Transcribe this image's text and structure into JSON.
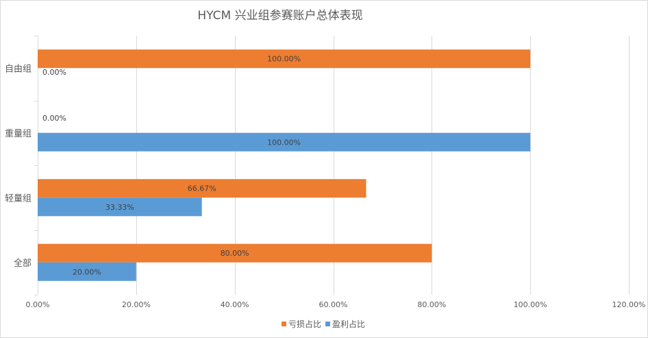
{
  "chart_data": {
    "type": "bar",
    "orientation": "horizontal",
    "title": "HYCM 兴业组参赛账户总体表现",
    "categories": [
      "自由组",
      "重量组",
      "轻量组",
      "全部"
    ],
    "series": [
      {
        "name": "亏损占比",
        "color": "#ED7D31",
        "values": [
          100,
          0,
          66.67,
          80
        ],
        "labels": [
          "100.00%",
          "0.00%",
          "66.67%",
          "80.00%"
        ]
      },
      {
        "name": "盈利占比",
        "color": "#5B9BD5",
        "values": [
          0,
          100,
          33.33,
          20
        ],
        "labels": [
          "0.00%",
          "100.00%",
          "33.33%",
          "20.00%"
        ]
      }
    ],
    "xlim": [
      0,
      120
    ],
    "xticks": [
      0,
      20,
      40,
      60,
      80,
      100,
      120
    ],
    "xtick_labels": [
      "0.00%",
      "20.00%",
      "40.00%",
      "60.00%",
      "80.00%",
      "100.00%",
      "120.00%"
    ],
    "grid": true,
    "legend": "bottom"
  }
}
